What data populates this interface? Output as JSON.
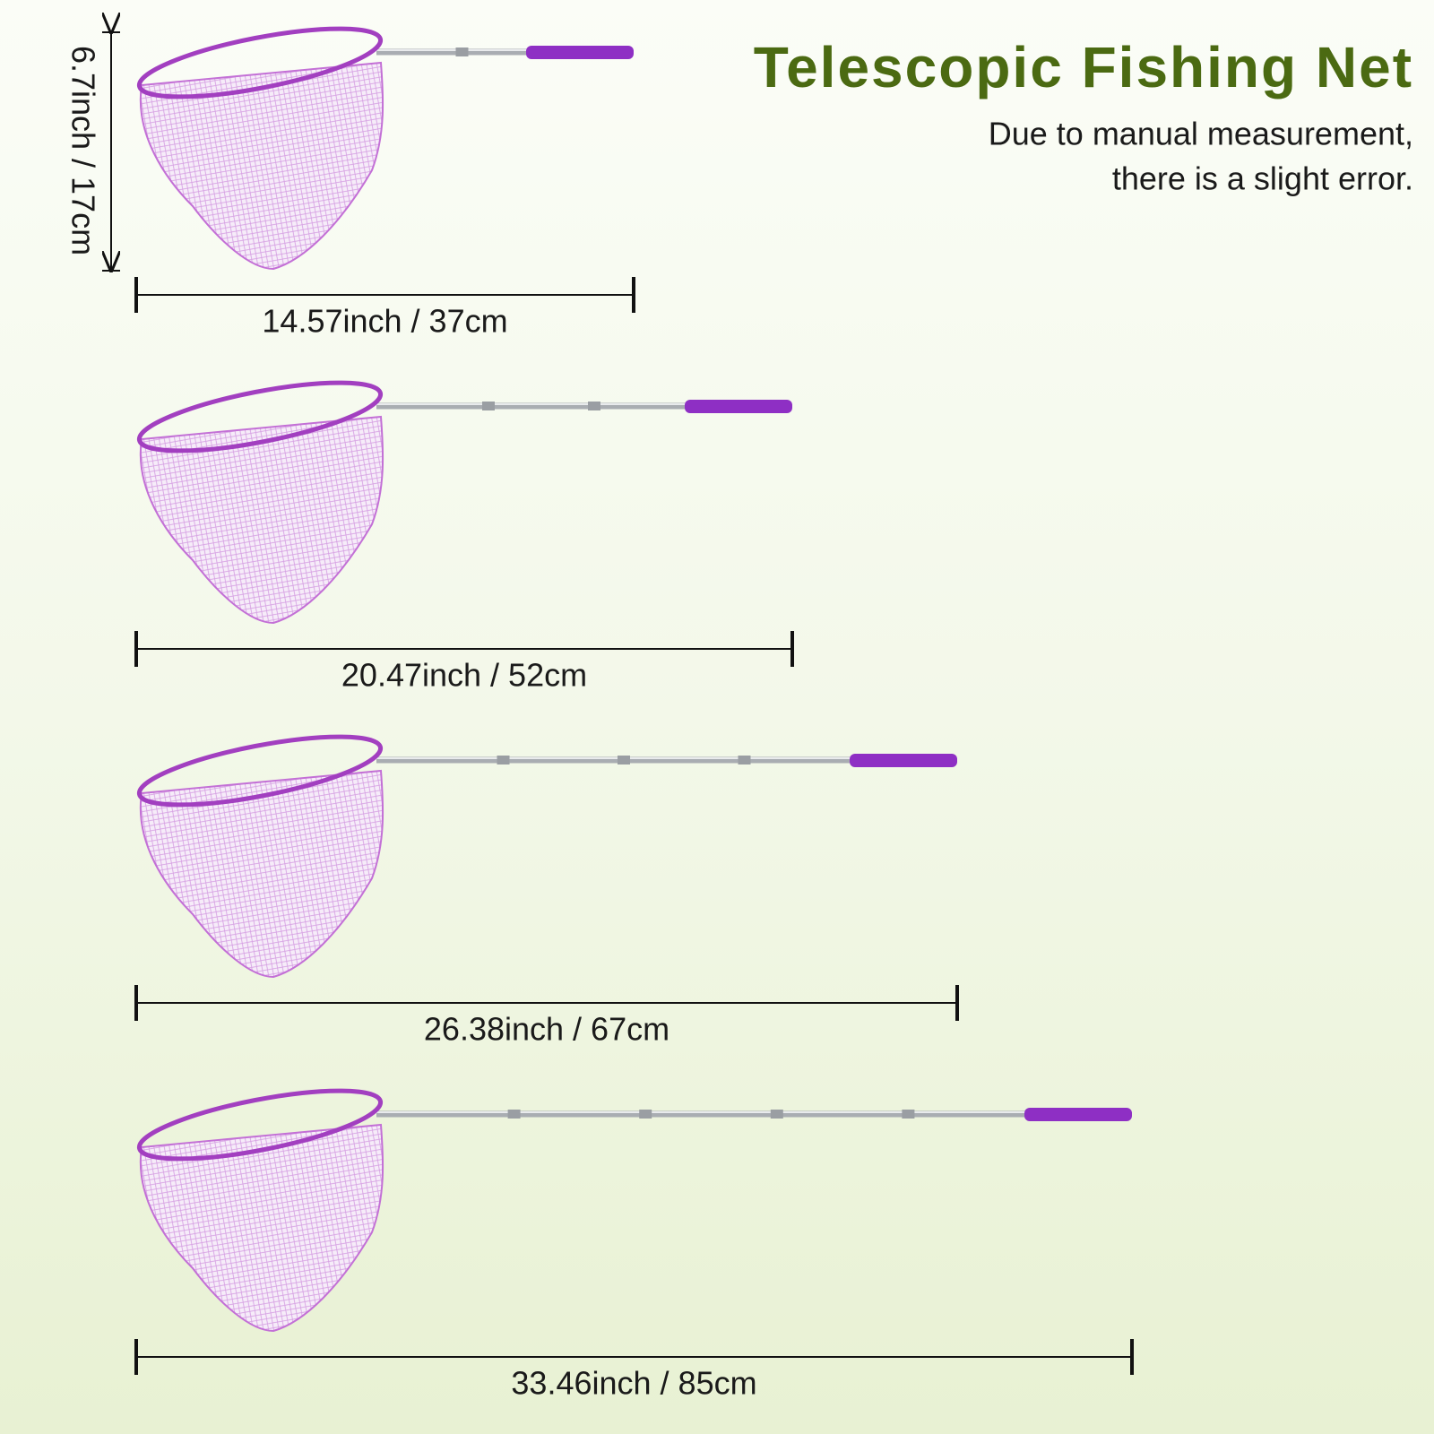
{
  "header": {
    "title": "Telescopic Fishing Net",
    "note": [
      "Due to manual measurement,",
      "there is a slight error."
    ]
  },
  "height_label": "6.7inch / 17cm",
  "nets": [
    {
      "length_label": "14.57inch / 37cm"
    },
    {
      "length_label": "20.47inch / 52cm"
    },
    {
      "length_label": "26.38inch / 67cm"
    },
    {
      "length_label": "33.46inch / 85cm"
    }
  ]
}
